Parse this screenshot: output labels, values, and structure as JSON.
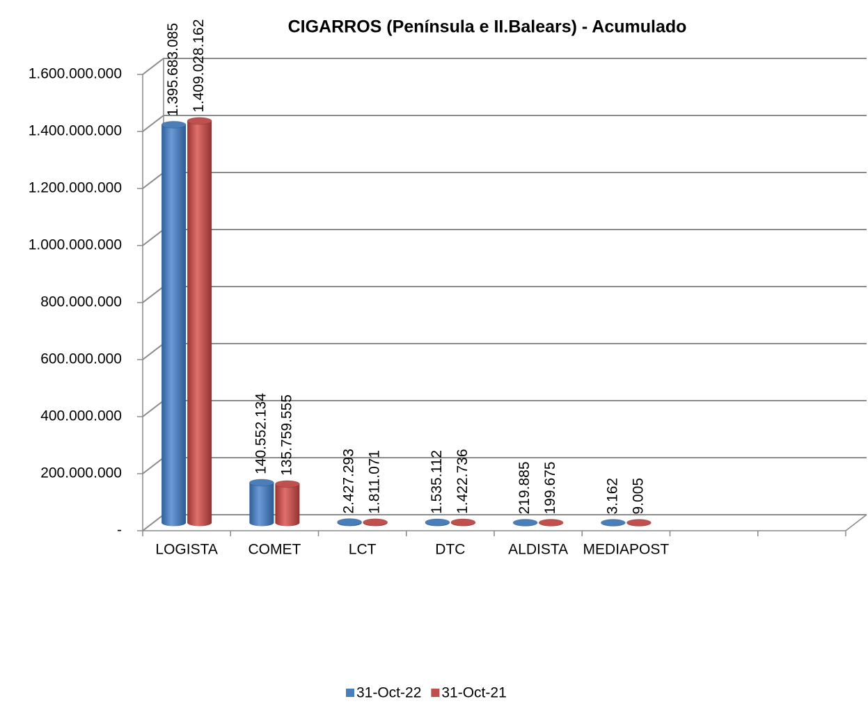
{
  "chart_data": {
    "type": "bar",
    "title": "CIGARROS  (Península e II.Balears) - Acumulado",
    "categories": [
      "LOGISTA",
      "COMET",
      "LCT",
      "DTC",
      "ALDISTA",
      "MEDIAPOST",
      null,
      null
    ],
    "series": [
      {
        "name": "31-Oct-22",
        "color": "#4a7ebb",
        "values": [
          1395683085,
          140552134,
          2427293,
          1535112,
          219885,
          3162,
          null,
          null
        ],
        "value_labels": [
          "1.395.683.085",
          "140.552.134",
          "2.427.293",
          "1.535.112",
          "219.885",
          "3.162",
          null,
          null
        ]
      },
      {
        "name": "31-Oct-21",
        "color": "#c0504d",
        "values": [
          1409028162,
          135759555,
          1811071,
          1422736,
          199675,
          9005,
          null,
          null
        ],
        "value_labels": [
          "1.409.028.162",
          "135.759.555",
          "1.811.071",
          "1.422.736",
          "199.675",
          "9.005",
          null,
          null
        ]
      }
    ],
    "ylim": [
      0,
      1600000000
    ],
    "yticks": [
      {
        "value": 0,
        "label": "-"
      },
      {
        "value": 200000000,
        "label": "200.000.000"
      },
      {
        "value": 400000000,
        "label": "400.000.000"
      },
      {
        "value": 600000000,
        "label": "600.000.000"
      },
      {
        "value": 800000000,
        "label": "800.000.000"
      },
      {
        "value": 1000000000,
        "label": "1.000.000.000"
      },
      {
        "value": 1200000000,
        "label": "1.200.000.000"
      },
      {
        "value": 1400000000,
        "label": "1.400.000.000"
      },
      {
        "value": 1600000000,
        "label": "1.600.000.000"
      }
    ],
    "grid": true,
    "legend": "bottom"
  }
}
